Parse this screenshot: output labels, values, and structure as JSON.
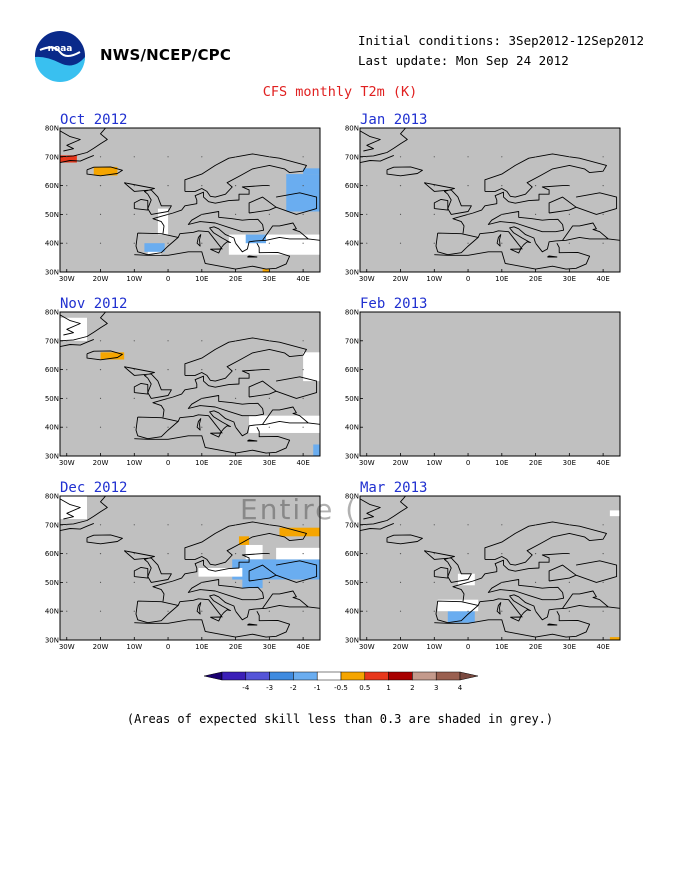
{
  "header": {
    "logo_name": "noaa-logo",
    "logo_text": "noaa",
    "agency": "NWS/NCEP/CPC",
    "initial_conditions": "Initial conditions: 3Sep2012-12Sep2012",
    "last_update": "Last update: Mon Sep 24 2012"
  },
  "title": "CFS monthly T2m (K)",
  "watermark": "Entire (",
  "map_axes": {
    "lon_labels": [
      "30W",
      "20W",
      "10W",
      "0",
      "10E",
      "20E",
      "30E",
      "40E"
    ],
    "lon_values": [
      -30,
      -20,
      -10,
      0,
      10,
      20,
      30,
      40
    ],
    "lat_labels": [
      "30N",
      "40N",
      "50N",
      "60N",
      "70N",
      "80N"
    ],
    "lat_values": [
      30,
      40,
      50,
      60,
      70,
      80
    ],
    "lon_range": [
      -32,
      45
    ],
    "lat_range": [
      30,
      80
    ]
  },
  "panels": [
    {
      "id": "oct-2012",
      "title": "Oct 2012",
      "blank": false,
      "anomalies": [
        {
          "lon": [
            -32,
            -27
          ],
          "lat": [
            68,
            70.5
          ],
          "value": 2
        },
        {
          "lon": [
            -22,
            -15
          ],
          "lat": [
            63.5,
            66.5
          ],
          "value": 1
        },
        {
          "lon": [
            35,
            45
          ],
          "lat": [
            51,
            64
          ],
          "value": -1
        },
        {
          "lon": [
            40,
            45
          ],
          "lat": [
            64,
            66
          ],
          "value": -1
        },
        {
          "lon": [
            18,
            45
          ],
          "lat": [
            36,
            43
          ],
          "value": 0
        },
        {
          "lon": [
            -3,
            0
          ],
          "lat": [
            43,
            52
          ],
          "value": 0
        },
        {
          "lon": [
            -6,
            -2
          ],
          "lat": [
            36,
            39
          ],
          "value": 0
        },
        {
          "lon": [
            -7,
            -1
          ],
          "lat": [
            37,
            40
          ],
          "value": -1
        },
        {
          "lon": [
            23,
            29
          ],
          "lat": [
            40,
            43
          ],
          "value": -1
        },
        {
          "lon": [
            28,
            30
          ],
          "lat": [
            30,
            31
          ],
          "value": 1
        }
      ]
    },
    {
      "id": "jan-2013",
      "title": "Jan 2013",
      "blank": false,
      "anomalies": []
    },
    {
      "id": "nov-2012",
      "title": "Nov 2012",
      "blank": false,
      "anomalies": [
        {
          "lon": [
            -32,
            -24
          ],
          "lat": [
            70,
            78
          ],
          "value": 0
        },
        {
          "lon": [
            -20,
            -13
          ],
          "lat": [
            63.5,
            66
          ],
          "value": 1
        },
        {
          "lon": [
            24,
            45
          ],
          "lat": [
            38,
            44
          ],
          "value": 0
        },
        {
          "lon": [
            40,
            45
          ],
          "lat": [
            56,
            66
          ],
          "value": 0
        },
        {
          "lon": [
            43,
            45
          ],
          "lat": [
            30,
            34
          ],
          "value": -1
        }
      ]
    },
    {
      "id": "feb-2013",
      "title": "Feb 2013",
      "blank": true,
      "anomalies": []
    },
    {
      "id": "dec-2012",
      "title": "Dec 2012",
      "blank": false,
      "anomalies": [
        {
          "lon": [
            -32,
            -24
          ],
          "lat": [
            72,
            80
          ],
          "value": 0
        },
        {
          "lon": [
            33,
            45
          ],
          "lat": [
            66,
            69
          ],
          "value": 1
        },
        {
          "lon": [
            21,
            24
          ],
          "lat": [
            63,
            66
          ],
          "value": 1
        },
        {
          "lon": [
            23,
            28
          ],
          "lat": [
            58,
            63
          ],
          "value": 0
        },
        {
          "lon": [
            19,
            45
          ],
          "lat": [
            51,
            58
          ],
          "value": -1
        },
        {
          "lon": [
            32,
            45
          ],
          "lat": [
            58,
            62
          ],
          "value": 0
        },
        {
          "lon": [
            9,
            22
          ],
          "lat": [
            52,
            55
          ],
          "value": 0
        },
        {
          "lon": [
            22,
            28
          ],
          "lat": [
            48,
            51
          ],
          "value": -1
        }
      ]
    },
    {
      "id": "mar-2013",
      "title": "Mar 2013",
      "blank": false,
      "anomalies": [
        {
          "lon": [
            -6,
            2
          ],
          "lat": [
            36,
            40
          ],
          "value": -1
        },
        {
          "lon": [
            -9,
            3
          ],
          "lat": [
            40,
            44
          ],
          "value": 0
        },
        {
          "lon": [
            -3,
            2
          ],
          "lat": [
            49,
            53
          ],
          "value": 0
        },
        {
          "lon": [
            42,
            45
          ],
          "lat": [
            30,
            31
          ],
          "value": 1
        },
        {
          "lon": [
            42,
            45
          ],
          "lat": [
            73,
            75
          ],
          "value": 0
        }
      ]
    }
  ],
  "colorbar": {
    "labels": [
      "-4",
      "-3",
      "-2",
      "-1",
      "-0.5",
      "0.5",
      "1",
      "2",
      "3",
      "4"
    ],
    "colors": [
      "#3b1fb8",
      "#5555d8",
      "#3f8be0",
      "#6aadf0",
      "#ffffff",
      "#f5a500",
      "#e8381c",
      "#a80000",
      "#c49a8c",
      "#9a6050"
    ],
    "low_cap_color": "#1a0070",
    "high_cap_color": "#7a4a40"
  },
  "anomaly_colors": {
    "-1": "#6aadf0",
    "0": "#ffffff",
    "1": "#f5a500",
    "2": "#e8381c"
  },
  "land_grey": "#c0c0c0",
  "footnote": "(Areas of expected skill less than 0.3 are shaded in grey.)"
}
